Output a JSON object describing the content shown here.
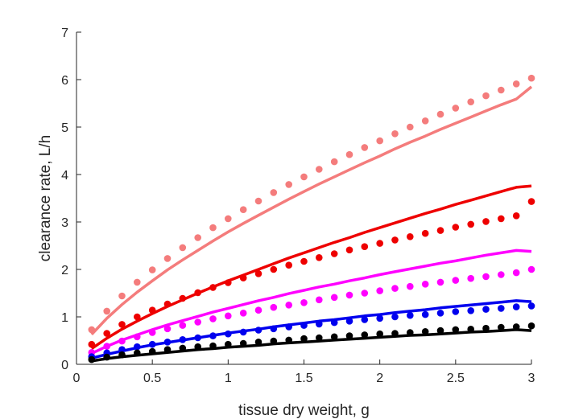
{
  "chart_data": {
    "type": "scatter",
    "title": "",
    "xlabel": "tissue dry weight, g",
    "ylabel": "clearance rate, L/h",
    "xlim": [
      0,
      3
    ],
    "ylim": [
      0,
      7
    ],
    "xticks": [
      0,
      0.5,
      1,
      1.5,
      2,
      2.5,
      3
    ],
    "xtick_labels": [
      "0",
      "0.5",
      "1",
      "1.5",
      "2",
      "2.5",
      "3"
    ],
    "yticks": [
      0,
      1,
      2,
      3,
      4,
      5,
      6,
      7
    ],
    "ytick_labels": [
      "0",
      "1",
      "2",
      "3",
      "4",
      "5",
      "6",
      "7"
    ],
    "grid": false,
    "legend": "none",
    "x": [
      0.1,
      0.2,
      0.3,
      0.4,
      0.5,
      0.6,
      0.7,
      0.8,
      0.9,
      1.0,
      1.1,
      1.2,
      1.3,
      1.4,
      1.5,
      1.6,
      1.7,
      1.8,
      1.9,
      2.0,
      2.1,
      2.2,
      2.3,
      2.4,
      2.5,
      2.6,
      2.7,
      2.8,
      2.9,
      3.0
    ],
    "series": [
      {
        "color": "#f47c7c",
        "points": [
          0.73,
          1.12,
          1.44,
          1.73,
          1.99,
          2.23,
          2.46,
          2.67,
          2.88,
          3.07,
          3.26,
          3.44,
          3.62,
          3.79,
          3.95,
          4.11,
          4.27,
          4.42,
          4.57,
          4.71,
          4.86,
          5.0,
          5.13,
          5.27,
          5.4,
          5.53,
          5.66,
          5.78,
          5.91,
          6.03
        ],
        "line": [
          0.63,
          0.97,
          1.26,
          1.52,
          1.76,
          1.99,
          2.2,
          2.4,
          2.6,
          2.79,
          2.97,
          3.14,
          3.31,
          3.48,
          3.64,
          3.8,
          3.95,
          4.1,
          4.25,
          4.39,
          4.54,
          4.68,
          4.81,
          4.95,
          5.08,
          5.21,
          5.34,
          5.47,
          5.59,
          5.85
        ]
      },
      {
        "color": "#ee0000",
        "points": [
          0.42,
          0.65,
          0.84,
          1.0,
          1.14,
          1.27,
          1.39,
          1.51,
          1.62,
          1.72,
          1.82,
          1.91,
          2.0,
          2.09,
          2.17,
          2.25,
          2.33,
          2.41,
          2.48,
          2.55,
          2.62,
          2.69,
          2.76,
          2.82,
          2.89,
          2.95,
          3.01,
          3.07,
          3.13,
          3.43
        ],
        "line": [
          0.33,
          0.55,
          0.74,
          0.91,
          1.07,
          1.22,
          1.36,
          1.5,
          1.63,
          1.76,
          1.88,
          2.0,
          2.12,
          2.24,
          2.35,
          2.46,
          2.57,
          2.67,
          2.78,
          2.88,
          2.98,
          3.08,
          3.18,
          3.27,
          3.37,
          3.46,
          3.55,
          3.64,
          3.73,
          3.76
        ]
      },
      {
        "color": "#ff00ff",
        "points": [
          0.25,
          0.38,
          0.49,
          0.58,
          0.67,
          0.75,
          0.82,
          0.89,
          0.96,
          1.02,
          1.08,
          1.14,
          1.2,
          1.25,
          1.3,
          1.36,
          1.41,
          1.46,
          1.5,
          1.55,
          1.6,
          1.64,
          1.69,
          1.73,
          1.77,
          1.81,
          1.85,
          1.89,
          1.93,
          2.0
        ],
        "line": [
          0.23,
          0.38,
          0.51,
          0.62,
          0.73,
          0.83,
          0.92,
          1.01,
          1.1,
          1.18,
          1.26,
          1.34,
          1.41,
          1.49,
          1.56,
          1.63,
          1.69,
          1.76,
          1.82,
          1.89,
          1.95,
          2.01,
          2.07,
          2.13,
          2.18,
          2.24,
          2.3,
          2.35,
          2.4,
          2.38
        ]
      },
      {
        "color": "#0000ee",
        "points": [
          0.16,
          0.24,
          0.31,
          0.37,
          0.42,
          0.47,
          0.52,
          0.56,
          0.6,
          0.64,
          0.68,
          0.72,
          0.75,
          0.79,
          0.82,
          0.85,
          0.88,
          0.91,
          0.94,
          0.97,
          1.0,
          1.03,
          1.05,
          1.08,
          1.11,
          1.13,
          1.16,
          1.18,
          1.21,
          1.23
        ],
        "line": [
          0.13,
          0.21,
          0.28,
          0.35,
          0.41,
          0.46,
          0.51,
          0.56,
          0.61,
          0.66,
          0.7,
          0.74,
          0.79,
          0.83,
          0.87,
          0.91,
          0.94,
          0.98,
          1.02,
          1.05,
          1.09,
          1.12,
          1.15,
          1.19,
          1.22,
          1.25,
          1.28,
          1.31,
          1.34,
          1.32
        ]
      },
      {
        "color": "#000000",
        "points": [
          0.1,
          0.15,
          0.2,
          0.24,
          0.27,
          0.31,
          0.34,
          0.37,
          0.39,
          0.42,
          0.44,
          0.47,
          0.49,
          0.51,
          0.54,
          0.56,
          0.58,
          0.6,
          0.62,
          0.64,
          0.65,
          0.67,
          0.69,
          0.71,
          0.73,
          0.74,
          0.76,
          0.78,
          0.79,
          0.81
        ],
        "line": [
          0.07,
          0.12,
          0.16,
          0.19,
          0.22,
          0.25,
          0.28,
          0.31,
          0.33,
          0.36,
          0.38,
          0.4,
          0.43,
          0.45,
          0.47,
          0.49,
          0.51,
          0.53,
          0.55,
          0.57,
          0.59,
          0.61,
          0.62,
          0.64,
          0.66,
          0.68,
          0.69,
          0.71,
          0.73,
          0.71
        ]
      }
    ]
  }
}
